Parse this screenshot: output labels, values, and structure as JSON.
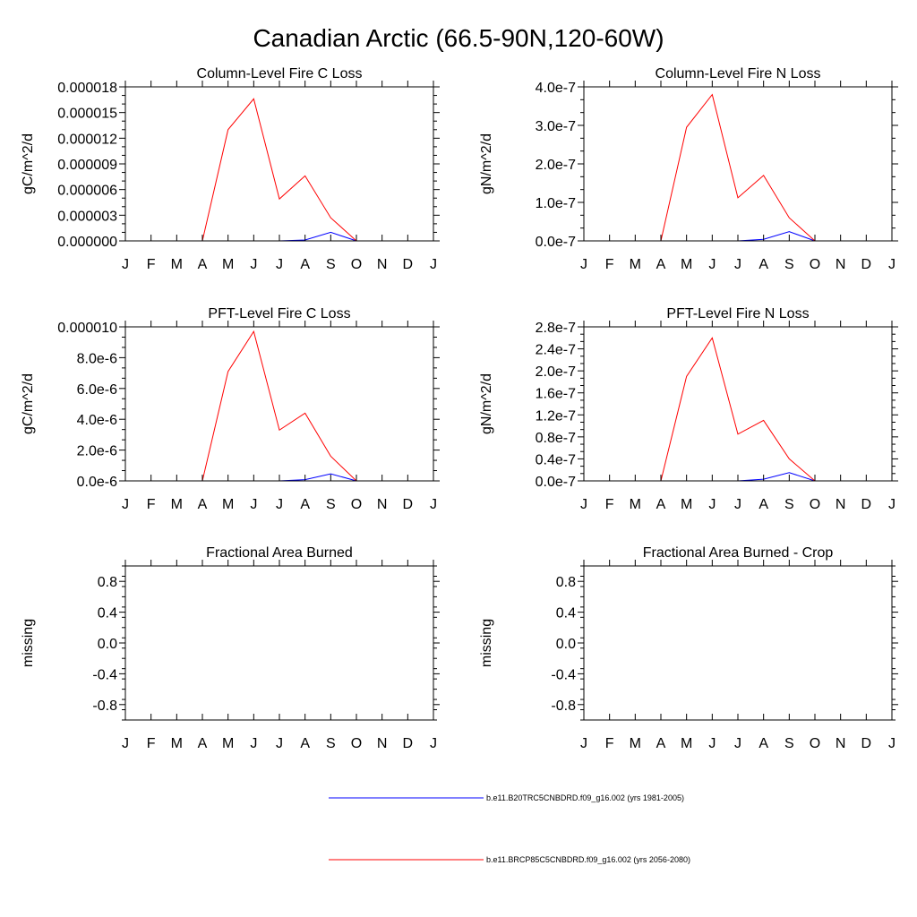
{
  "figure_title": "Canadian Arctic (66.5-90N,120-60W)",
  "colors": {
    "series_1": "#0000ff",
    "series_2": "#ff0000",
    "axis": "#000000"
  },
  "legend": [
    {
      "label": "b.e11.B20TRC5CNBDRD.f09_g16.002 (yrs 1981-2005)",
      "color": "#0000ff"
    },
    {
      "label": "b.e11.BRCP85C5CNBDRD.f09_g16.002 (yrs 2056-2080)",
      "color": "#ff0000"
    }
  ],
  "chart_data": [
    {
      "type": "line",
      "title": "Column-Level Fire C Loss",
      "ylabel": "gC/m^2/d",
      "xlabel": "",
      "categories": [
        "J",
        "F",
        "M",
        "A",
        "M",
        "J",
        "J",
        "A",
        "S",
        "O",
        "N",
        "D",
        "J"
      ],
      "ylim": [
        0,
        1.8e-05
      ],
      "yticks": [
        0,
        3e-06,
        6e-06,
        9e-06,
        1.2e-05,
        1.5e-05,
        1.8e-05
      ],
      "ytick_labels": [
        "0.000000",
        "0.000003",
        "0.000006",
        "0.000009",
        "0.000012",
        "0.000015",
        "0.000018"
      ],
      "series": [
        {
          "name": "b.e11.B20TRC5CNBDRD.f09_g16.002 (yrs 1981-2005)",
          "color": "#0000ff",
          "values": [
            0,
            0,
            0,
            0,
            0,
            0,
            0,
            1e-07,
            1e-06,
            0,
            0,
            0,
            0
          ]
        },
        {
          "name": "b.e11.BRCP85C5CNBDRD.f09_g16.002 (yrs 2056-2080)",
          "color": "#ff0000",
          "values": [
            0,
            0,
            0,
            0,
            1.3e-05,
            1.66e-05,
            4.9e-06,
            7.6e-06,
            2.7e-06,
            0,
            0,
            0,
            0
          ]
        }
      ]
    },
    {
      "type": "line",
      "title": "Column-Level Fire N Loss",
      "ylabel": "gN/m^2/d",
      "xlabel": "",
      "categories": [
        "J",
        "F",
        "M",
        "A",
        "M",
        "J",
        "J",
        "A",
        "S",
        "O",
        "N",
        "D",
        "J"
      ],
      "ylim": [
        0,
        4e-07
      ],
      "yticks": [
        0,
        1e-07,
        2e-07,
        3e-07,
        4e-07
      ],
      "ytick_labels": [
        "0.0e-7",
        "1.0e-7",
        "2.0e-7",
        "3.0e-7",
        "4.0e-7"
      ],
      "series": [
        {
          "name": "b.e11.B20TRC5CNBDRD.f09_g16.002 (yrs 1981-2005)",
          "color": "#0000ff",
          "values": [
            0,
            0,
            0,
            0,
            0,
            0,
            0,
            4e-09,
            2.4e-08,
            0,
            0,
            0,
            0
          ]
        },
        {
          "name": "b.e11.BRCP85C5CNBDRD.f09_g16.002 (yrs 2056-2080)",
          "color": "#ff0000",
          "values": [
            0,
            0,
            0,
            0,
            2.95e-07,
            3.8e-07,
            1.12e-07,
            1.7e-07,
            6e-08,
            0,
            0,
            0,
            0
          ]
        }
      ]
    },
    {
      "type": "line",
      "title": "PFT-Level Fire C Loss",
      "ylabel": "gC/m^2/d",
      "xlabel": "",
      "categories": [
        "J",
        "F",
        "M",
        "A",
        "M",
        "J",
        "J",
        "A",
        "S",
        "O",
        "N",
        "D",
        "J"
      ],
      "ylim": [
        0,
        1e-05
      ],
      "yticks": [
        0,
        2e-06,
        4e-06,
        6e-06,
        8e-06,
        1e-05
      ],
      "ytick_labels": [
        "0.0e-6",
        "2.0e-6",
        "4.0e-6",
        "6.0e-6",
        "8.0e-6",
        "0.000010"
      ],
      "series": [
        {
          "name": "b.e11.B20TRC5CNBDRD.f09_g16.002 (yrs 1981-2005)",
          "color": "#0000ff",
          "values": [
            0,
            0,
            0,
            0,
            0,
            0,
            0,
            8e-08,
            4.6e-07,
            0,
            0,
            0,
            0
          ]
        },
        {
          "name": "b.e11.BRCP85C5CNBDRD.f09_g16.002 (yrs 2056-2080)",
          "color": "#ff0000",
          "values": [
            0,
            0,
            0,
            0,
            7.1e-06,
            9.7e-06,
            3.3e-06,
            4.4e-06,
            1.6e-06,
            0,
            0,
            0,
            0
          ]
        }
      ]
    },
    {
      "type": "line",
      "title": "PFT-Level Fire N Loss",
      "ylabel": "gN/m^2/d",
      "xlabel": "",
      "categories": [
        "J",
        "F",
        "M",
        "A",
        "M",
        "J",
        "J",
        "A",
        "S",
        "O",
        "N",
        "D",
        "J"
      ],
      "ylim": [
        0,
        2.8e-07
      ],
      "yticks": [
        0,
        4e-08,
        8e-08,
        1.2e-07,
        1.6e-07,
        2e-07,
        2.4e-07,
        2.8e-07
      ],
      "ytick_labels": [
        "0.0e-7",
        "0.4e-7",
        "0.8e-7",
        "1.2e-7",
        "1.6e-7",
        "2.0e-7",
        "2.4e-7",
        "2.8e-7"
      ],
      "series": [
        {
          "name": "b.e11.B20TRC5CNBDRD.f09_g16.002 (yrs 1981-2005)",
          "color": "#0000ff",
          "values": [
            0,
            0,
            0,
            0,
            0,
            0,
            0,
            3e-09,
            1.5e-08,
            0,
            0,
            0,
            0
          ]
        },
        {
          "name": "b.e11.BRCP85C5CNBDRD.f09_g16.002 (yrs 2056-2080)",
          "color": "#ff0000",
          "values": [
            0,
            0,
            0,
            0,
            1.9e-07,
            2.6e-07,
            8.5e-08,
            1.1e-07,
            4e-08,
            0,
            0,
            0,
            0
          ]
        }
      ]
    },
    {
      "type": "line",
      "title": "Fractional Area Burned",
      "ylabel": "missing",
      "xlabel": "",
      "categories": [
        "J",
        "F",
        "M",
        "A",
        "M",
        "J",
        "J",
        "A",
        "S",
        "O",
        "N",
        "D",
        "J"
      ],
      "ylim": [
        -1,
        1
      ],
      "yticks": [
        -0.8,
        -0.4,
        0,
        0.4,
        0.8
      ],
      "ytick_labels": [
        "-0.8",
        "-0.4",
        "0.0",
        "0.4",
        "0.8"
      ],
      "series": []
    },
    {
      "type": "line",
      "title": "Fractional Area Burned - Crop",
      "ylabel": "missing",
      "xlabel": "",
      "categories": [
        "J",
        "F",
        "M",
        "A",
        "M",
        "J",
        "J",
        "A",
        "S",
        "O",
        "N",
        "D",
        "J"
      ],
      "ylim": [
        -1,
        1
      ],
      "yticks": [
        -0.8,
        -0.4,
        0,
        0.4,
        0.8
      ],
      "ytick_labels": [
        "-0.8",
        "-0.4",
        "0.0",
        "0.4",
        "0.8"
      ],
      "series": []
    }
  ]
}
